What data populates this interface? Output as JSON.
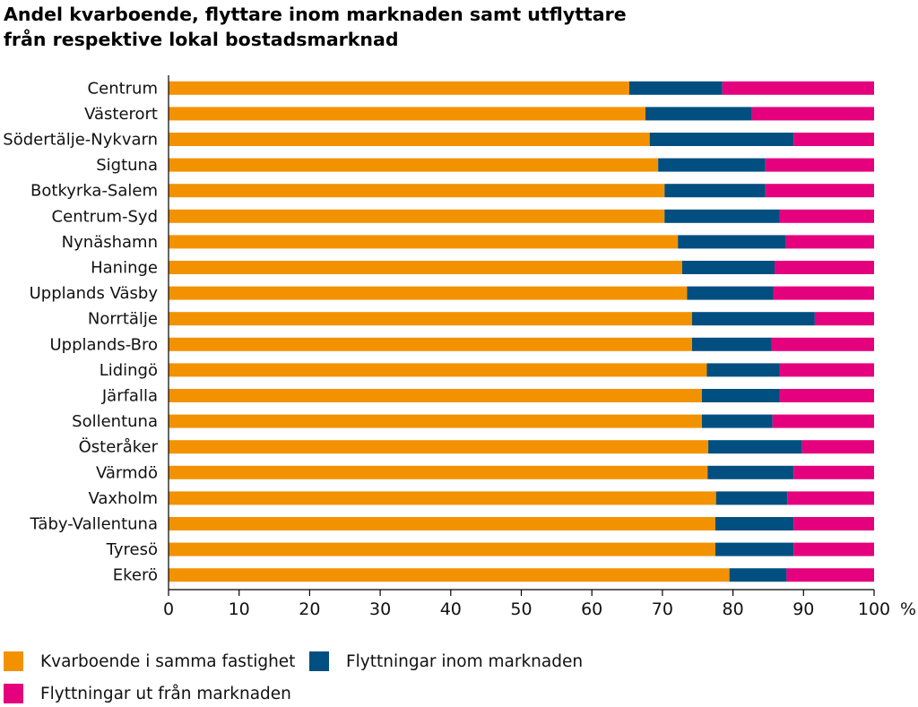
{
  "chart_data": {
    "type": "bar",
    "orientation": "horizontal",
    "stacked": true,
    "title": "Andel kvarboende, flyttare inom marknaden samt utflyttare",
    "subtitle": "från respektive lokal bostadsmarknad",
    "categories": [
      "Centrum",
      "Västerort",
      "Södertälje-Nykvarn",
      "Sigtuna",
      "Botkyrka-Salem",
      "Centrum-Syd",
      "Nynäshamn",
      "Haninge",
      "Upplands Väsby",
      "Norrtälje",
      "Upplands-Bro",
      "Lidingö",
      "Järfalla",
      "Sollentuna",
      "Österåker",
      "Värmdö",
      "Vaxholm",
      "Täby-Vallentuna",
      "Tyresö",
      "Ekerö"
    ],
    "series": [
      {
        "name": "Kvarboende i samma fastighet",
        "color": "#f39200",
        "values": [
          65.3,
          67.6,
          68.2,
          69.4,
          70.3,
          70.3,
          72.2,
          72.8,
          73.5,
          74.2,
          74.2,
          76.3,
          75.6,
          75.6,
          76.5,
          76.4,
          77.6,
          77.5,
          77.5,
          79.5
        ]
      },
      {
        "name": "Flyttningar inom marknaden",
        "color": "#004f80",
        "values": [
          13.2,
          15.1,
          20.4,
          15.2,
          14.3,
          16.3,
          15.3,
          13.1,
          12.2,
          17.4,
          11.3,
          10.3,
          11.0,
          10.0,
          13.3,
          12.2,
          10.1,
          11.1,
          11.1,
          8.1
        ]
      },
      {
        "name": "Flyttningar ut från marknaden",
        "color": "#e5007d",
        "values": [
          21.5,
          17.3,
          11.4,
          15.4,
          15.4,
          13.4,
          12.5,
          14.1,
          14.3,
          8.4,
          14.5,
          13.4,
          13.4,
          14.4,
          10.2,
          11.4,
          12.3,
          11.4,
          11.4,
          12.4
        ]
      }
    ],
    "xticks": [
      "0",
      "10",
      "20",
      "30",
      "40",
      "50",
      "60",
      "70",
      "80",
      "90",
      "100"
    ],
    "xlim": [
      0,
      100
    ],
    "xunit": "%",
    "legend_position": "bottom"
  }
}
